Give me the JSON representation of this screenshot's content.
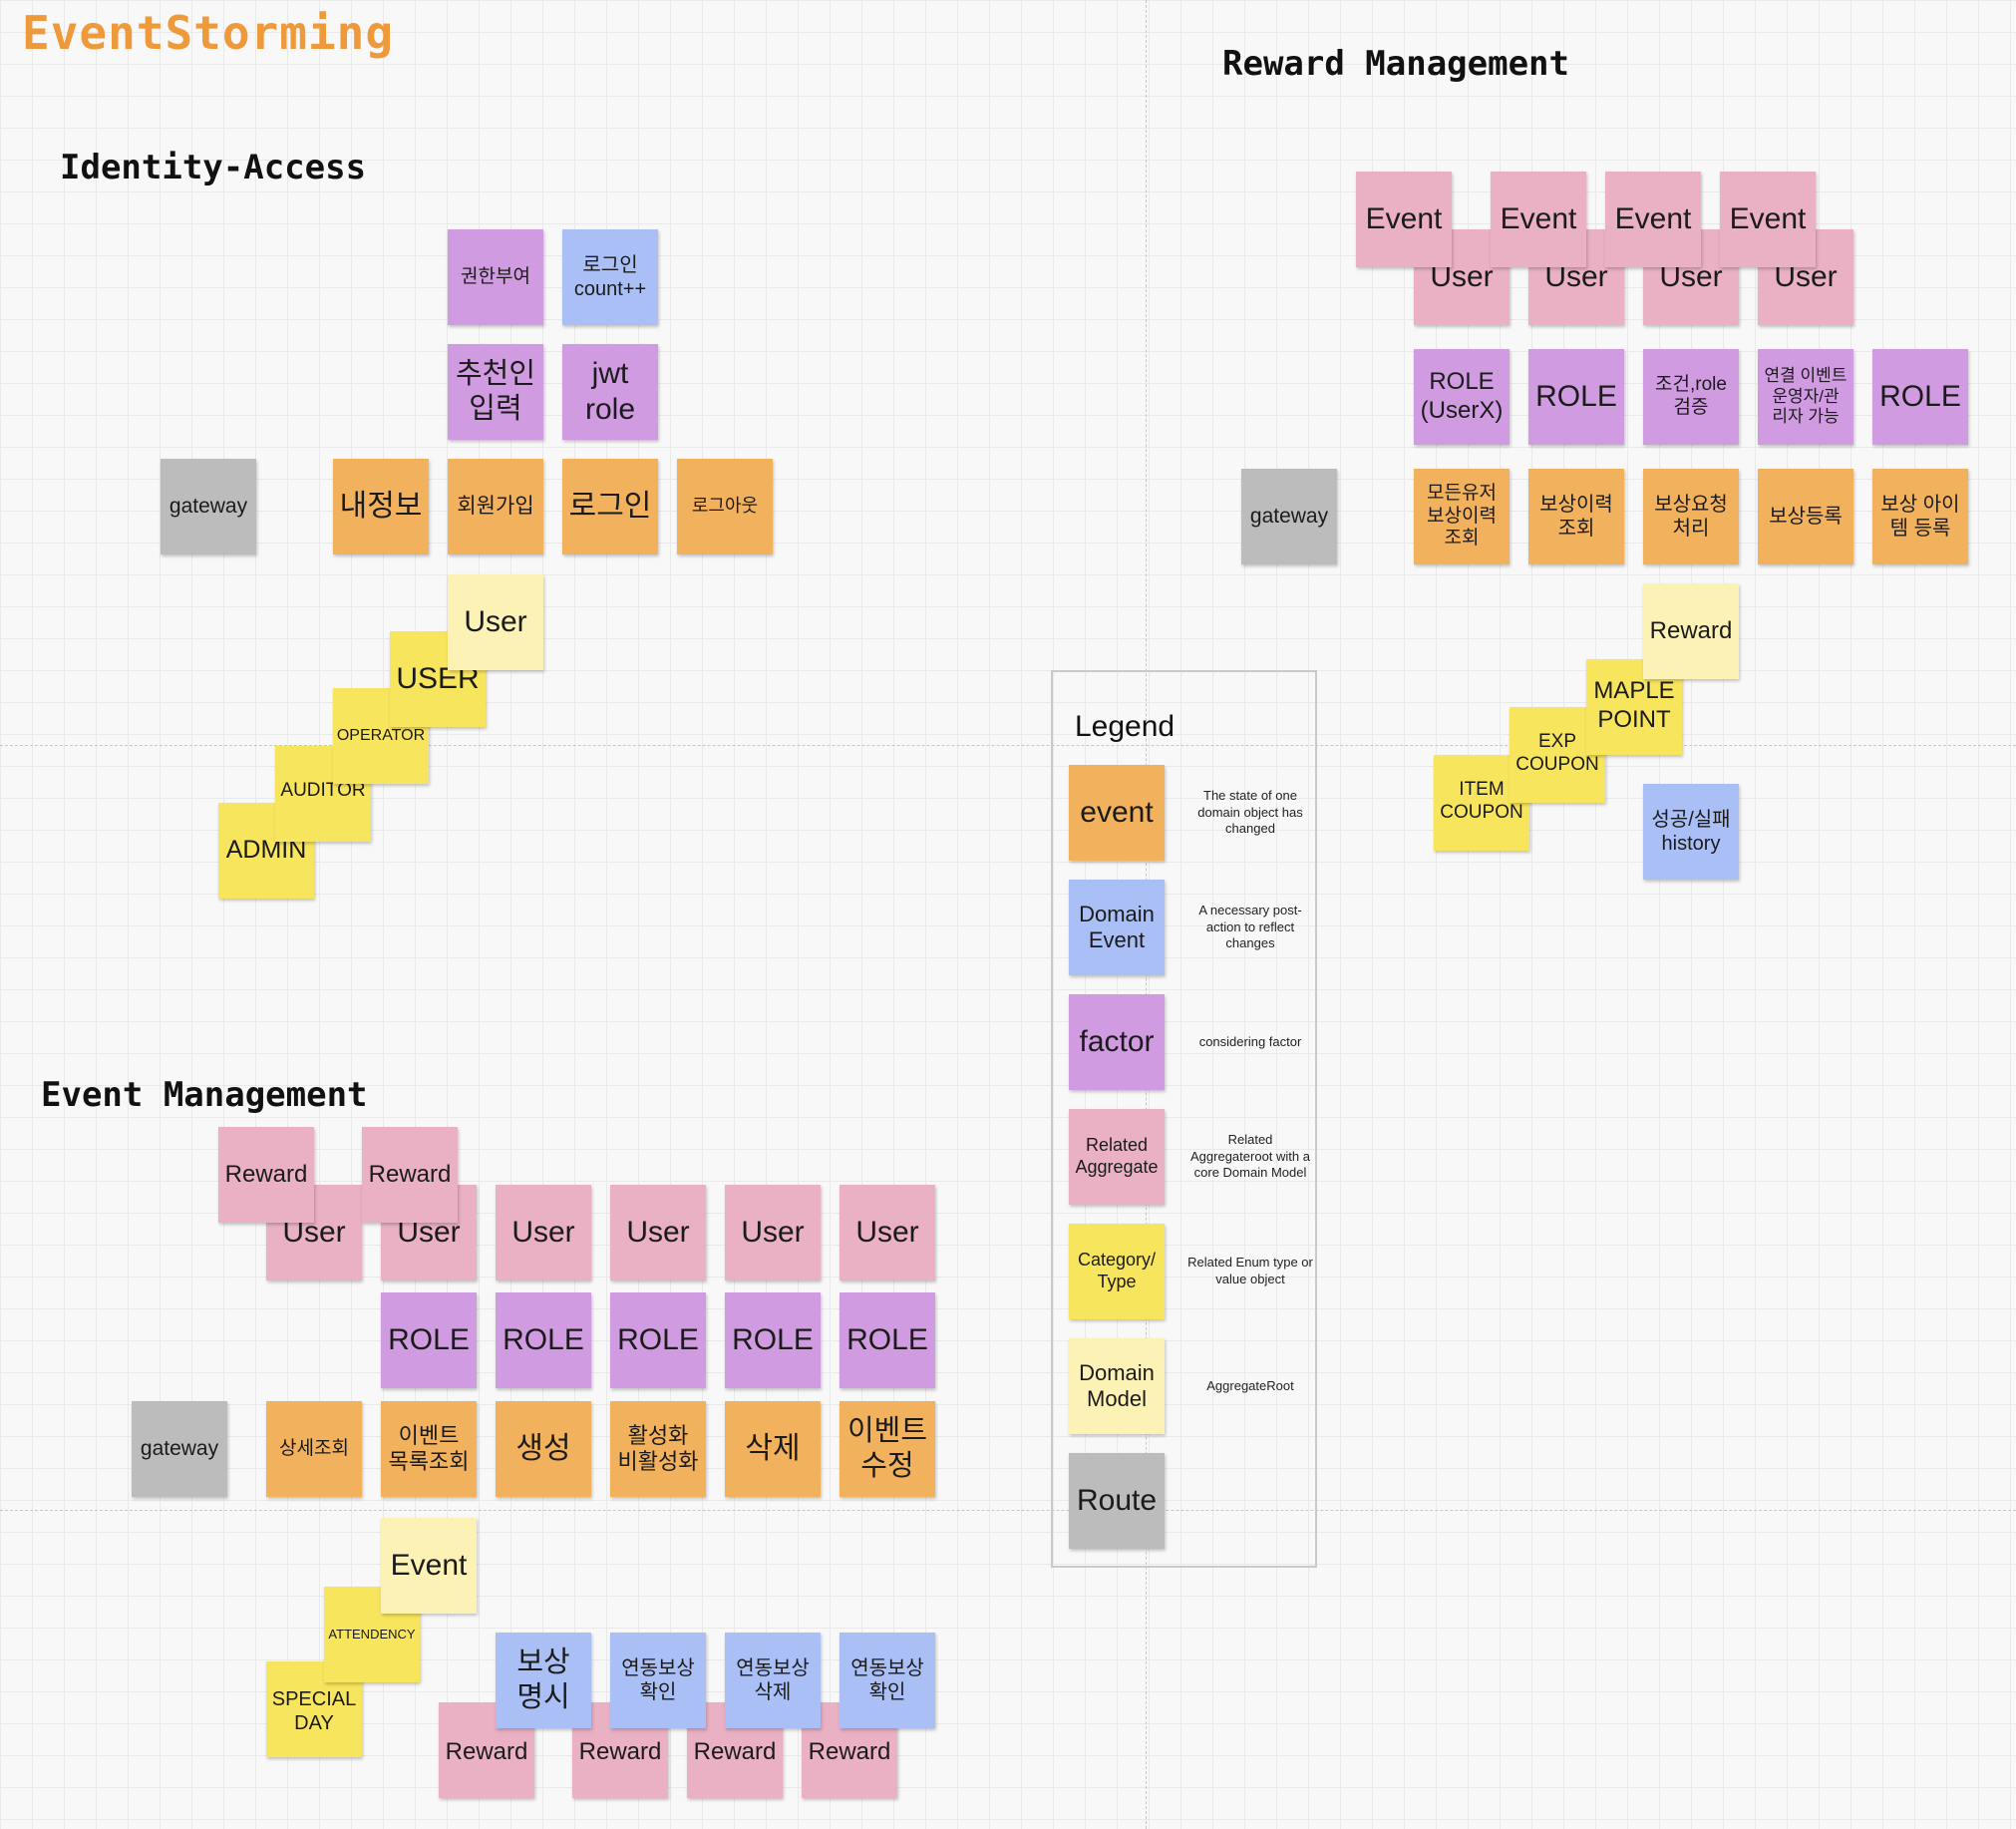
{
  "board": {
    "title": "EventStorming",
    "sections": {
      "identity": "Identity-Access",
      "reward": "Reward Management",
      "event": "Event Management"
    }
  },
  "colors": {
    "event": "#f2b15c",
    "domain_event": "#aabff6",
    "factor": "#d09be0",
    "related_aggregate": "#eab0c3",
    "category_type": "#f8e55e",
    "domain_model": "#fdf2b5",
    "route": "#bcbcbc"
  },
  "identity_access": {
    "factor_grant": "권한부여",
    "domain_login_count": "로그인\ncount++",
    "factor_referral": "추천인\n입력",
    "factor_jwt": "jwt\nrole",
    "gateway": "gateway",
    "event_myinfo": "내정보",
    "event_signup": "회원가입",
    "event_login": "로그인",
    "event_logout": "로그아웃",
    "model_user": "User",
    "role_user": "USER",
    "role_operator": "OPERATOR",
    "role_auditor": "AUDITOR",
    "role_admin": "ADMIN"
  },
  "reward_management": {
    "agg_event_1": "Event",
    "agg_event_2": "Event",
    "agg_event_3": "Event",
    "agg_event_4": "Event",
    "agg_user_1": "User",
    "agg_user_2": "User",
    "agg_user_3": "User",
    "agg_user_4": "User",
    "factor_role_userx": "ROLE\n(UserX)",
    "factor_role_2": "ROLE",
    "factor_condition": "조건,role\n검증",
    "factor_linked": "연결 이벤트\n운영자/관\n리자 가능",
    "factor_role_5": "ROLE",
    "gateway": "gateway",
    "event_all_history": "모든유저\n보상이력\n조회",
    "event_history": "보상이력\n조회",
    "event_request": "보상요청\n처리",
    "event_register": "보상등록",
    "event_item_register": "보상 아이\n템 등록",
    "model_reward": "Reward",
    "type_maple": "MAPLE\nPOINT",
    "type_exp": "EXP\nCOUPON",
    "type_item": "ITEM\nCOUPON",
    "domain_result": "성공/실패\nhistory"
  },
  "event_management": {
    "agg_reward_1": "Reward",
    "agg_reward_2": "Reward",
    "agg_user_1": "User",
    "agg_user_2": "User",
    "agg_user_3": "User",
    "agg_user_4": "User",
    "agg_user_5": "User",
    "agg_user_6": "User",
    "factor_role_1": "ROLE",
    "factor_role_2": "ROLE",
    "factor_role_3": "ROLE",
    "factor_role_4": "ROLE",
    "factor_role_5": "ROLE",
    "gateway": "gateway",
    "event_detail": "상세조회",
    "event_list": "이벤트\n목록조회",
    "event_create": "생성",
    "event_toggle": "활성화\n비활성화",
    "event_delete": "삭제",
    "event_edit": "이벤트\n수정",
    "model_event": "Event",
    "type_attendency": "ATTENDENCY",
    "type_special": "SPECIAL\nDAY",
    "domain_reward_spec": "보상\n명시",
    "domain_linked_check_1": "연동보상\n확인",
    "domain_linked_delete": "연동보상\n삭제",
    "domain_linked_check_2": "연동보상\n확인",
    "agg_reward_3": "Reward",
    "agg_reward_4": "Reward",
    "agg_reward_5": "Reward",
    "agg_reward_6": "Reward"
  },
  "legend": {
    "title": "Legend",
    "items": [
      {
        "label": "event",
        "desc": "The state of one domain object has changed"
      },
      {
        "label": "Domain\nEvent",
        "desc": "A necessary post-action to reflect changes"
      },
      {
        "label": "factor",
        "desc": "considering factor"
      },
      {
        "label": "Related\nAggregate",
        "desc": "Related Aggregateroot with a core Domain Model"
      },
      {
        "label": "Category/\nType",
        "desc": "Related Enum type or value object"
      },
      {
        "label": "Domain\nModel",
        "desc": "AggregateRoot"
      },
      {
        "label": "Route",
        "desc": ""
      }
    ]
  }
}
